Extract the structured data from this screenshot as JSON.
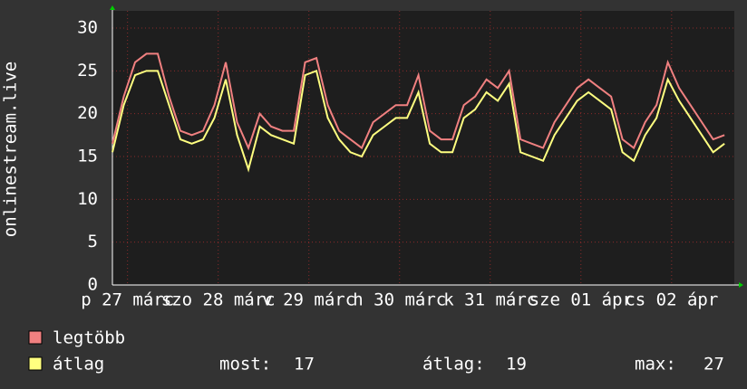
{
  "chart_data": {
    "type": "line",
    "y_label": "onlinestream.live",
    "x": [
      0,
      3,
      6,
      9,
      12,
      15,
      18,
      21,
      24,
      27,
      30,
      33,
      36,
      39,
      42,
      45,
      48,
      51,
      54,
      57,
      60,
      63,
      66,
      69,
      72,
      75,
      78,
      81,
      84,
      87,
      90,
      93,
      96,
      99,
      102,
      105,
      108,
      111,
      114,
      117,
      120,
      123,
      126,
      129,
      132,
      135,
      138,
      141,
      144,
      147,
      150,
      153,
      156,
      159,
      162
    ],
    "series": [
      {
        "name": "legtöbb",
        "color": "#f08080",
        "values": [
          16.5,
          22,
          26,
          27,
          27,
          22,
          18,
          17.5,
          18,
          21,
          26,
          19,
          16,
          20,
          18.5,
          18,
          18,
          26,
          26.5,
          21,
          18,
          17,
          16,
          19,
          20,
          21,
          21,
          24.5,
          18,
          17,
          17,
          21,
          22,
          24,
          23,
          25,
          17,
          16.5,
          16,
          19,
          21,
          23,
          24,
          23,
          22,
          17,
          16,
          19,
          21,
          26,
          23,
          21,
          19,
          17,
          17.5
        ]
      },
      {
        "name": "átlag",
        "color": "#ffff80",
        "values": [
          15.5,
          21,
          24.5,
          25,
          25,
          21,
          17,
          16.5,
          17,
          19.5,
          24,
          17.5,
          13.5,
          18.5,
          17.5,
          17,
          16.5,
          24.5,
          25,
          19.5,
          17,
          15.5,
          15,
          17.5,
          18.5,
          19.5,
          19.5,
          22.5,
          16.5,
          15.5,
          15.5,
          19.5,
          20.5,
          22.5,
          21.5,
          23.5,
          15.5,
          15,
          14.5,
          17.5,
          19.5,
          21.5,
          22.5,
          21.5,
          20.5,
          15.5,
          14.5,
          17.5,
          19.5,
          24,
          21.5,
          19.5,
          17.5,
          15.5,
          16.5
        ]
      }
    ],
    "xlim": [
      0,
      164.6
    ],
    "xticks": [
      {
        "value": 4,
        "label": "p 27 márc"
      },
      {
        "value": 28,
        "label": "szo 28 márc"
      },
      {
        "value": 52,
        "label": "v 29 márc"
      },
      {
        "value": 76,
        "label": "h 30 márc"
      },
      {
        "value": 100,
        "label": "k 31 márc"
      },
      {
        "value": 124,
        "label": "sze 01 ápr"
      },
      {
        "value": 148,
        "label": "cs 02 ápr"
      }
    ],
    "ylim": [
      0,
      30
    ],
    "yticks": [
      0,
      5,
      10,
      15,
      20,
      25,
      30
    ],
    "grid": true,
    "stats": [
      {
        "label": "most:",
        "value": 17
      },
      {
        "label": "átlag:",
        "value": 19
      },
      {
        "label": "max:",
        "value": 27
      }
    ]
  }
}
